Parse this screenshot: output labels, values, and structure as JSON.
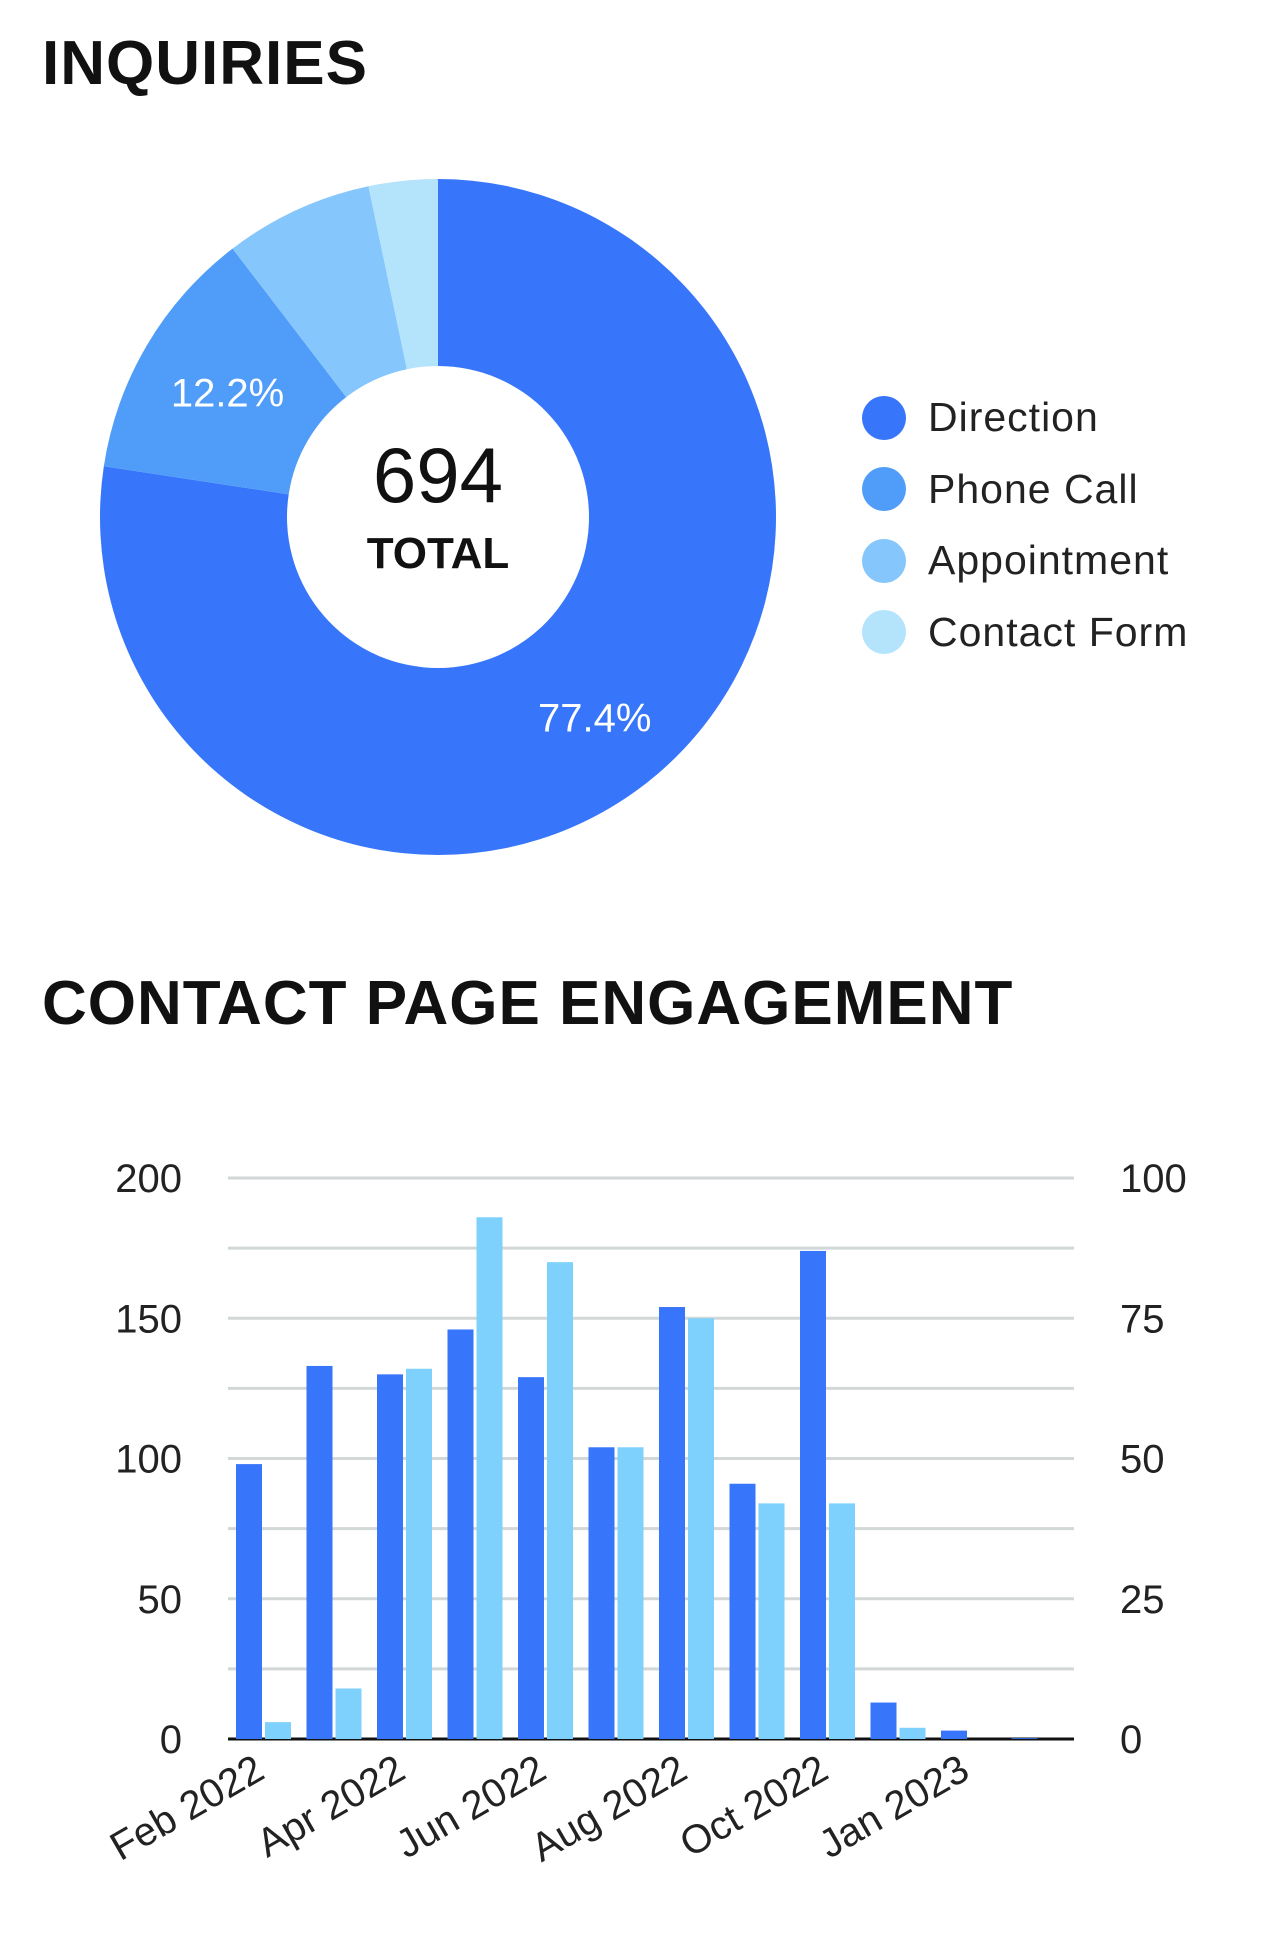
{
  "titles": {
    "inquiries": "INQUIRIES",
    "engagement": "CONTACT PAGE ENGAGEMENT"
  },
  "chart_data": [
    {
      "type": "pie",
      "variant": "donut",
      "title": "INQUIRIES",
      "center_value": "694",
      "center_label": "TOTAL",
      "slices": [
        {
          "name": "Direction",
          "percent": 77.4,
          "label": "77.4%",
          "color": "#3775FA"
        },
        {
          "name": "Phone Call",
          "percent": 12.2,
          "label": "12.2%",
          "color": "#4F9CF9"
        },
        {
          "name": "Appointment",
          "percent": 7.1,
          "label": "",
          "color": "#85C6FC"
        },
        {
          "name": "Contact Form",
          "percent": 3.3,
          "label": "",
          "color": "#B4E3FC"
        }
      ],
      "legend_position": "right"
    },
    {
      "type": "bar",
      "title": "CONTACT PAGE ENGAGEMENT",
      "x_tick_labels": [
        "Feb 2022",
        "Apr 2022",
        "Jun 2022",
        "Aug 2022",
        "Oct 2022",
        "Jan 2023"
      ],
      "bar_count": 12,
      "series": [
        {
          "name": "left-axis series",
          "axis": "left",
          "color": "#3775FA",
          "values": [
            98,
            133,
            130,
            146,
            129,
            104,
            154,
            91,
            174,
            13,
            3,
            0.3
          ]
        },
        {
          "name": "right-axis series",
          "axis": "right",
          "color": "#7DD1FC",
          "values": [
            3,
            9,
            66,
            93,
            85,
            52,
            75,
            42,
            42,
            2,
            0,
            0
          ]
        }
      ],
      "y_left": {
        "min": 0,
        "max": 200,
        "ticks": [
          "200",
          "150",
          "100",
          "50",
          "0"
        ],
        "tick_values": [
          200,
          150,
          100,
          50,
          0
        ]
      },
      "y_right": {
        "min": 0,
        "max": 100,
        "ticks": [
          "100",
          "75",
          "50",
          "25",
          "0"
        ],
        "tick_values": [
          100,
          75,
          50,
          25,
          0
        ]
      },
      "grid": true,
      "grid_color": "#D2D7D7"
    }
  ]
}
